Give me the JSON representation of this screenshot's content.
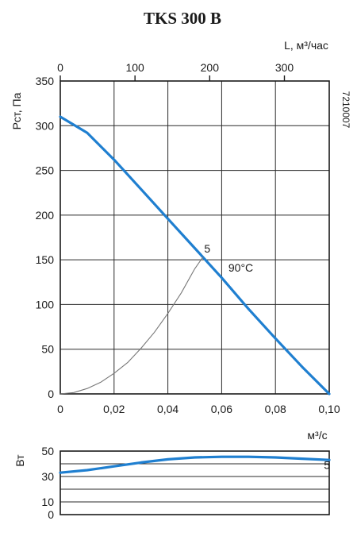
{
  "chart_data": [
    {
      "type": "line",
      "title": "TKS 300 B",
      "code": "7210007",
      "ylabel": "Pст, Па",
      "xlabel_bottom": "м³/с",
      "xlabel_top": "L, м³/час",
      "xlim": [
        0,
        0.1
      ],
      "ylim": [
        0,
        350
      ],
      "xlim_top": [
        0,
        360
      ],
      "grid": true,
      "x_ticks": [
        0,
        0.02,
        0.04,
        0.06,
        0.08,
        0.1
      ],
      "x_tick_labels": [
        "0",
        "0,02",
        "0,04",
        "0,06",
        "0,08",
        "0,10"
      ],
      "x_top_ticks": [
        0,
        100,
        200,
        300
      ],
      "x_top_tick_labels": [
        "0",
        "100",
        "200",
        "300"
      ],
      "y_ticks": [
        0,
        50,
        100,
        150,
        200,
        250,
        300,
        350
      ],
      "y_tick_labels": [
        "0",
        "50",
        "100",
        "150",
        "200",
        "250",
        "300",
        "350"
      ],
      "series": [
        {
          "name": "90°C",
          "color": "#1f7fd0",
          "x": [
            0,
            0.01,
            0.02,
            0.03,
            0.04,
            0.05,
            0.06,
            0.07,
            0.08,
            0.09,
            0.1
          ],
          "y": [
            310,
            292,
            262,
            229,
            196,
            163,
            130,
            95,
            62,
            30,
            0
          ]
        },
        {
          "name": "5",
          "color": "#777777",
          "x": [
            0,
            0.005,
            0.01,
            0.015,
            0.02,
            0.025,
            0.03,
            0.035,
            0.04,
            0.045,
            0.05,
            0.053
          ],
          "y": [
            0,
            1.5,
            6,
            13,
            23,
            35,
            51,
            69,
            90,
            113,
            140,
            153
          ]
        }
      ],
      "annotations": [
        {
          "text": "5",
          "x": 0.0535,
          "y": 158
        },
        {
          "text": "90°C",
          "x": 0.0625,
          "y": 137
        }
      ]
    },
    {
      "type": "line",
      "ylabel": "Вт",
      "xlim": [
        0,
        0.1
      ],
      "ylim": [
        0,
        50
      ],
      "y_ticks": [
        0,
        10,
        30,
        50
      ],
      "y_tick_labels": [
        "0",
        "10",
        "30",
        "50"
      ],
      "grid_y": [
        0,
        10,
        20,
        30,
        40,
        50
      ],
      "series": [
        {
          "name": "5",
          "color": "#1f7fd0",
          "x": [
            0,
            0.01,
            0.02,
            0.03,
            0.04,
            0.05,
            0.06,
            0.07,
            0.08,
            0.09,
            0.1
          ],
          "y": [
            33,
            35,
            38,
            41,
            43.5,
            45,
            45.5,
            45.5,
            45,
            44,
            43
          ]
        }
      ],
      "annotations": [
        {
          "text": "5",
          "x": 0.098,
          "y": 36
        }
      ]
    }
  ]
}
